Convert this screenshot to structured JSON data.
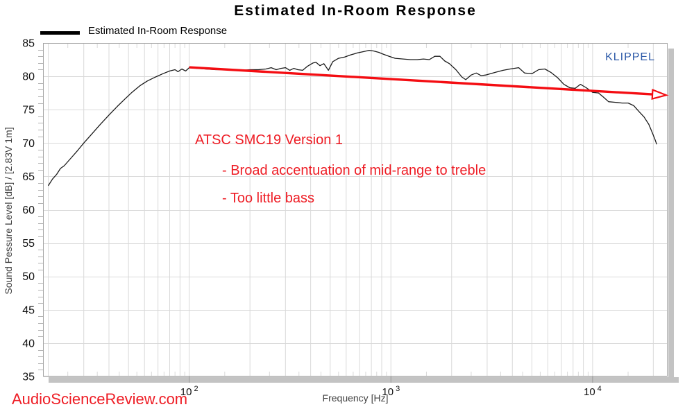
{
  "title": "Estimated In-Room Response",
  "legend": {
    "label": "Estimated In-Room Response"
  },
  "watermarks": {
    "klippel": "KLIPPEL",
    "asr": "AudioScienceReview.com"
  },
  "annotations": {
    "line1": "ATSC SMC19 Version 1",
    "line2": "- Broad accentuation of mid-range to treble",
    "line3": "- Too little bass"
  },
  "colors": {
    "annotation_red": "#ee1c24",
    "arrow_red": "#f40d12",
    "klippel_blue": "#2d5aa8",
    "grid": "#d9d9d9",
    "axis_border": "#a6a6a6",
    "major_tick": "#9a9a9a",
    "minor_tick": "#b4b4b4",
    "shadow": "#c3c3c3",
    "curve": "#1a1a1a",
    "tick_text": "#111111",
    "axis_label_text": "#404040"
  },
  "chart_data": {
    "type": "line",
    "title": "Estimated In-Room Response",
    "xlabel": "Frequency [Hz]",
    "ylabel": "Sound Pessure Level [dB] / [2.83V 1m]",
    "x_scale": "log",
    "xlim": [
      18.84,
      23550
    ],
    "ylim": [
      35,
      85
    ],
    "y_major_step": 5,
    "y_tick_labels": [
      "85",
      "80",
      "75",
      "70",
      "65",
      "60",
      "55",
      "50",
      "45",
      "40",
      "35"
    ],
    "x_major_ticks": [
      {
        "value": 100,
        "base": "10",
        "exp": "2"
      },
      {
        "value": 1000,
        "base": "10",
        "exp": "3"
      },
      {
        "value": 10000,
        "base": "10",
        "exp": "4"
      }
    ],
    "grid": true,
    "legend_position": "top-left",
    "series": [
      {
        "name": "Estimated In-Room Response",
        "color": "#1a1a1a",
        "points": [
          [
            20,
            63.6
          ],
          [
            21,
            64.6
          ],
          [
            22,
            65.3
          ],
          [
            23,
            66.2
          ],
          [
            24,
            66.6
          ],
          [
            26,
            67.8
          ],
          [
            28,
            68.9
          ],
          [
            30,
            70.0
          ],
          [
            33,
            71.4
          ],
          [
            36,
            72.7
          ],
          [
            40,
            74.2
          ],
          [
            44,
            75.5
          ],
          [
            48,
            76.6
          ],
          [
            52,
            77.6
          ],
          [
            57,
            78.6
          ],
          [
            62,
            79.3
          ],
          [
            68,
            79.9
          ],
          [
            74,
            80.4
          ],
          [
            80,
            80.8
          ],
          [
            85,
            81.0
          ],
          [
            88,
            80.7
          ],
          [
            92,
            81.1
          ],
          [
            96,
            80.8
          ],
          [
            100,
            81.3
          ],
          [
            110,
            81.2
          ],
          [
            120,
            81.1
          ],
          [
            135,
            81.0
          ],
          [
            150,
            81.0
          ],
          [
            165,
            80.9
          ],
          [
            180,
            80.9
          ],
          [
            200,
            81.0
          ],
          [
            220,
            81.0
          ],
          [
            240,
            81.1
          ],
          [
            255,
            81.3
          ],
          [
            270,
            81.0
          ],
          [
            285,
            81.2
          ],
          [
            300,
            81.3
          ],
          [
            315,
            80.9
          ],
          [
            330,
            81.2
          ],
          [
            345,
            81.0
          ],
          [
            365,
            80.9
          ],
          [
            385,
            81.5
          ],
          [
            410,
            82.0
          ],
          [
            425,
            82.1
          ],
          [
            445,
            81.6
          ],
          [
            465,
            81.9
          ],
          [
            490,
            80.9
          ],
          [
            515,
            82.2
          ],
          [
            550,
            82.7
          ],
          [
            590,
            82.9
          ],
          [
            630,
            83.2
          ],
          [
            680,
            83.5
          ],
          [
            730,
            83.7
          ],
          [
            780,
            83.9
          ],
          [
            820,
            83.8
          ],
          [
            870,
            83.6
          ],
          [
            920,
            83.3
          ],
          [
            980,
            83.0
          ],
          [
            1050,
            82.7
          ],
          [
            1150,
            82.6
          ],
          [
            1250,
            82.5
          ],
          [
            1350,
            82.5
          ],
          [
            1450,
            82.6
          ],
          [
            1550,
            82.5
          ],
          [
            1650,
            83.0
          ],
          [
            1750,
            83.0
          ],
          [
            1850,
            82.3
          ],
          [
            1950,
            81.9
          ],
          [
            2100,
            81.0
          ],
          [
            2250,
            79.9
          ],
          [
            2350,
            79.5
          ],
          [
            2500,
            80.2
          ],
          [
            2650,
            80.5
          ],
          [
            2800,
            80.1
          ],
          [
            2950,
            80.2
          ],
          [
            3300,
            80.6
          ],
          [
            3600,
            80.9
          ],
          [
            3900,
            81.1
          ],
          [
            4300,
            81.3
          ],
          [
            4600,
            80.5
          ],
          [
            5000,
            80.4
          ],
          [
            5400,
            81.0
          ],
          [
            5800,
            81.1
          ],
          [
            6200,
            80.6
          ],
          [
            6700,
            79.8
          ],
          [
            7200,
            78.8
          ],
          [
            7700,
            78.3
          ],
          [
            8200,
            78.2
          ],
          [
            8700,
            78.8
          ],
          [
            9300,
            78.3
          ],
          [
            10000,
            77.6
          ],
          [
            10700,
            77.5
          ],
          [
            11300,
            76.9
          ],
          [
            12000,
            76.2
          ],
          [
            13000,
            76.1
          ],
          [
            14000,
            76.0
          ],
          [
            15000,
            76.0
          ],
          [
            16000,
            75.6
          ],
          [
            17000,
            74.7
          ],
          [
            18000,
            73.9
          ],
          [
            19000,
            72.8
          ],
          [
            19800,
            71.5
          ],
          [
            20400,
            70.5
          ],
          [
            20800,
            69.8
          ]
        ]
      }
    ],
    "trend_arrow": {
      "from": [
        100,
        81.35
      ],
      "to": [
        19800,
        77.3
      ]
    }
  }
}
